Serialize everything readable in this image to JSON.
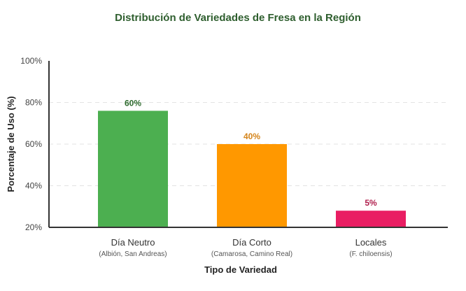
{
  "chart_data": {
    "type": "bar",
    "title": "Distribución de Variedades de Fresa en la Región",
    "xlabel": "Tipo de Variedad",
    "ylabel": "Porcentaje de Uso (%)",
    "ylim": [
      20,
      100
    ],
    "yticks": [
      "20%",
      "40%",
      "60%",
      "80%",
      "100%"
    ],
    "ytick_values": [
      20,
      40,
      60,
      80,
      100
    ],
    "grid": "horizontal dashed",
    "categories": [
      "Día Neutro",
      "Día Corto",
      "Locales"
    ],
    "subcategories": [
      "(Albión, San Andreas)",
      "(Camarosa, Camino Real)",
      "(F. chiloensis)"
    ],
    "values": [
      60,
      40,
      5
    ],
    "data_labels": [
      "60%",
      "40%",
      "5%"
    ],
    "bar_levels": [
      76,
      60,
      28
    ],
    "colors": [
      "#4caf50",
      "#ff9800",
      "#e91e63"
    ],
    "label_colors": [
      "#2e6b2e",
      "#d4841a",
      "#b0204e"
    ],
    "title_color": "#2e5e2e"
  }
}
